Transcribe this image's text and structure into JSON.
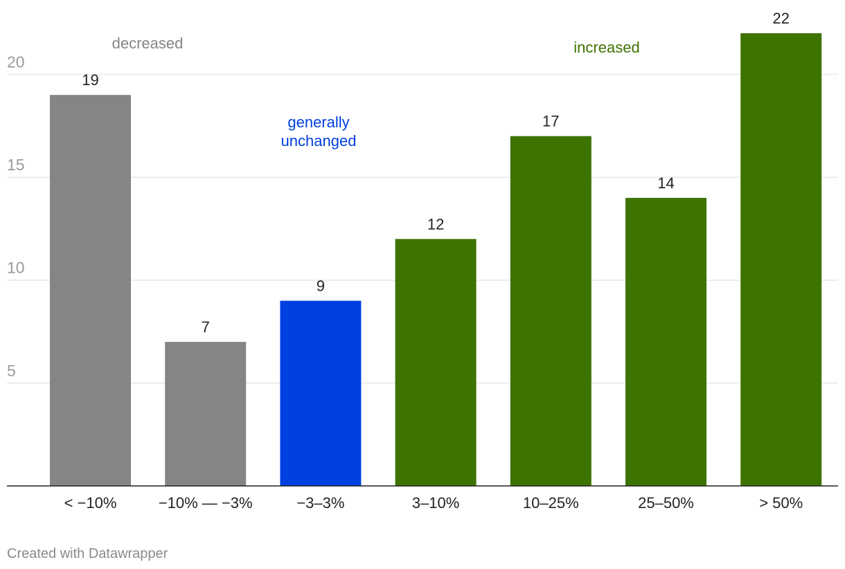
{
  "chart_data": {
    "type": "bar",
    "title": "",
    "xlabel": "",
    "ylabel": "",
    "ylim": [
      0,
      22
    ],
    "yticks": [
      5,
      10,
      15,
      20
    ],
    "grid": true,
    "categories": [
      "< −10%",
      "−10% — −3%",
      "−3–3%",
      "3–10%",
      "10–25%",
      "25–50%",
      "> 50%"
    ],
    "values": [
      19,
      7,
      9,
      12,
      17,
      14,
      22
    ],
    "value_labels": [
      "19",
      "7",
      "9",
      "12",
      "17",
      "14",
      "22"
    ],
    "groups": [
      "decreased",
      "decreased",
      "unchanged",
      "increased",
      "increased",
      "increased",
      "increased"
    ],
    "annotations": [
      {
        "text": "decreased",
        "group": "decreased"
      },
      {
        "text": "generally",
        "group": "unchanged"
      },
      {
        "text": "unchanged",
        "group": "unchanged"
      },
      {
        "text": "increased",
        "group": "increased"
      }
    ]
  },
  "colors": {
    "decreased": "#858585",
    "unchanged": "#0040e0",
    "increased": "#3d7300",
    "annot_decreased": "#858585",
    "annot_unchanged": "#0040e0",
    "annot_increased": "#3d7300"
  },
  "credit": "Created with Datawrapper"
}
